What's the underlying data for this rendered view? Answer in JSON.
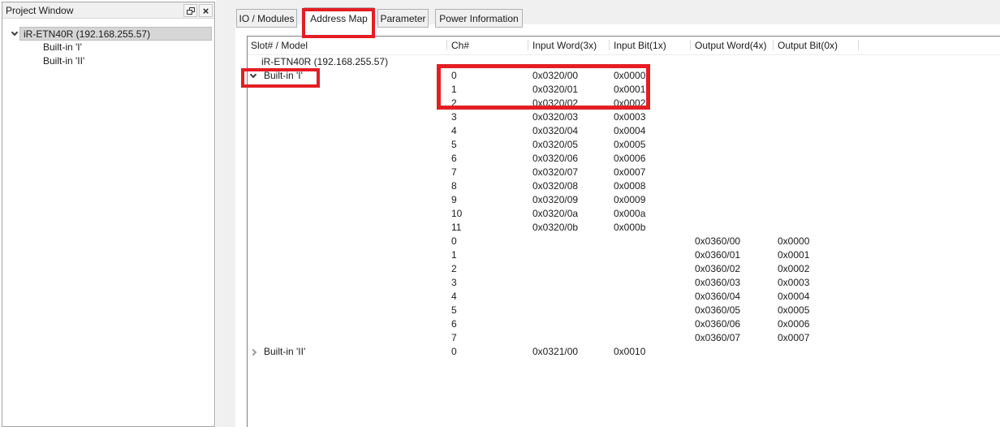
{
  "colors": {
    "panel_gray": "#f0f0f0",
    "border_gray": "#a5a5a5",
    "selection_gray": "#d6d6d6",
    "table_border": "#808080"
  },
  "project_window": {
    "title": "Project Window",
    "icons": {
      "close": "×",
      "float": "float-window-icon"
    },
    "tree": {
      "root_label": "iR-ETN40R (192.168.255.57)",
      "children": [
        {
          "label": "Built-in 'I'"
        },
        {
          "label": "Built-in 'II'"
        }
      ]
    }
  },
  "tabs": {
    "items": [
      {
        "label": "IO / Modules",
        "active": false
      },
      {
        "label": "Address Map",
        "active": true
      },
      {
        "label": "Parameter",
        "active": false
      },
      {
        "label": "Power Information",
        "active": false
      }
    ]
  },
  "address_map_table": {
    "columns": [
      "Slot# / Model",
      "Ch#",
      "Input Word(3x)",
      "Input Bit(1x)",
      "Output Word(4x)",
      "Output Bit(0x)"
    ],
    "rows": [
      {
        "type": "model",
        "slot": "iR-ETN40R (192.168.255.57)",
        "expander": null,
        "ch": "",
        "input_word": "",
        "input_bit": "",
        "output_word": "",
        "output_bit": ""
      },
      {
        "type": "module",
        "slot": "Built-in 'I'",
        "expander": "down",
        "ch": "0",
        "input_word": "0x0320/00",
        "input_bit": "0x0000",
        "output_word": "",
        "output_bit": ""
      },
      {
        "type": "channel",
        "slot": "",
        "expander": null,
        "ch": "1",
        "input_word": "0x0320/01",
        "input_bit": "0x0001",
        "output_word": "",
        "output_bit": ""
      },
      {
        "type": "channel",
        "slot": "",
        "expander": null,
        "ch": "2",
        "input_word": "0x0320/02",
        "input_bit": "0x0002",
        "output_word": "",
        "output_bit": ""
      },
      {
        "type": "channel",
        "slot": "",
        "expander": null,
        "ch": "3",
        "input_word": "0x0320/03",
        "input_bit": "0x0003",
        "output_word": "",
        "output_bit": ""
      },
      {
        "type": "channel",
        "slot": "",
        "expander": null,
        "ch": "4",
        "input_word": "0x0320/04",
        "input_bit": "0x0004",
        "output_word": "",
        "output_bit": ""
      },
      {
        "type": "channel",
        "slot": "",
        "expander": null,
        "ch": "5",
        "input_word": "0x0320/05",
        "input_bit": "0x0005",
        "output_word": "",
        "output_bit": ""
      },
      {
        "type": "channel",
        "slot": "",
        "expander": null,
        "ch": "6",
        "input_word": "0x0320/06",
        "input_bit": "0x0006",
        "output_word": "",
        "output_bit": ""
      },
      {
        "type": "channel",
        "slot": "",
        "expander": null,
        "ch": "7",
        "input_word": "0x0320/07",
        "input_bit": "0x0007",
        "output_word": "",
        "output_bit": ""
      },
      {
        "type": "channel",
        "slot": "",
        "expander": null,
        "ch": "8",
        "input_word": "0x0320/08",
        "input_bit": "0x0008",
        "output_word": "",
        "output_bit": ""
      },
      {
        "type": "channel",
        "slot": "",
        "expander": null,
        "ch": "9",
        "input_word": "0x0320/09",
        "input_bit": "0x0009",
        "output_word": "",
        "output_bit": ""
      },
      {
        "type": "channel",
        "slot": "",
        "expander": null,
        "ch": "10",
        "input_word": "0x0320/0a",
        "input_bit": "0x000a",
        "output_word": "",
        "output_bit": ""
      },
      {
        "type": "channel",
        "slot": "",
        "expander": null,
        "ch": "11",
        "input_word": "0x0320/0b",
        "input_bit": "0x000b",
        "output_word": "",
        "output_bit": ""
      },
      {
        "type": "channel",
        "slot": "",
        "expander": null,
        "ch": "0",
        "input_word": "",
        "input_bit": "",
        "output_word": "0x0360/00",
        "output_bit": "0x0000"
      },
      {
        "type": "channel",
        "slot": "",
        "expander": null,
        "ch": "1",
        "input_word": "",
        "input_bit": "",
        "output_word": "0x0360/01",
        "output_bit": "0x0001"
      },
      {
        "type": "channel",
        "slot": "",
        "expander": null,
        "ch": "2",
        "input_word": "",
        "input_bit": "",
        "output_word": "0x0360/02",
        "output_bit": "0x0002"
      },
      {
        "type": "channel",
        "slot": "",
        "expander": null,
        "ch": "3",
        "input_word": "",
        "input_bit": "",
        "output_word": "0x0360/03",
        "output_bit": "0x0003"
      },
      {
        "type": "channel",
        "slot": "",
        "expander": null,
        "ch": "4",
        "input_word": "",
        "input_bit": "",
        "output_word": "0x0360/04",
        "output_bit": "0x0004"
      },
      {
        "type": "channel",
        "slot": "",
        "expander": null,
        "ch": "5",
        "input_word": "",
        "input_bit": "",
        "output_word": "0x0360/05",
        "output_bit": "0x0005"
      },
      {
        "type": "channel",
        "slot": "",
        "expander": null,
        "ch": "6",
        "input_word": "",
        "input_bit": "",
        "output_word": "0x0360/06",
        "output_bit": "0x0006"
      },
      {
        "type": "channel",
        "slot": "",
        "expander": null,
        "ch": "7",
        "input_word": "",
        "input_bit": "",
        "output_word": "0x0360/07",
        "output_bit": "0x0007"
      },
      {
        "type": "module",
        "slot": "Built-in 'II'",
        "expander": "right",
        "ch": "0",
        "input_word": "0x0321/00",
        "input_bit": "0x0010",
        "output_word": "",
        "output_bit": ""
      }
    ]
  },
  "annotations": {
    "color": "#e31e24",
    "boxes": [
      "address-map-tab-highlight",
      "built-in-I-row-highlight",
      "channel-rows-0-2-highlight"
    ]
  }
}
